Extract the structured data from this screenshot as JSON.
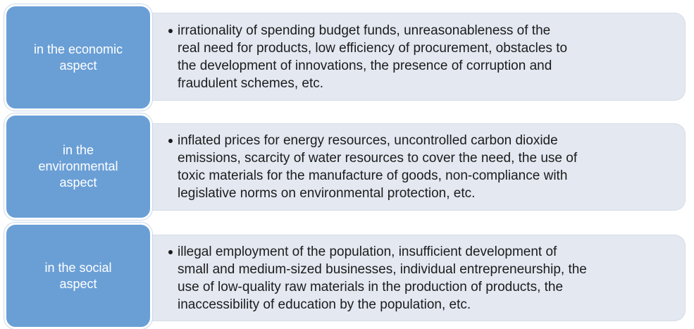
{
  "items": [
    {
      "label": [
        "in the economic",
        "aspect"
      ],
      "text": [
        "irrationality of spending budget funds, unreasonableness of the",
        "real need for products, low efficiency of procurement, obstacles to",
        "the development of innovations, the presence of corruption and",
        "fraudulent schemes, etc."
      ]
    },
    {
      "label": [
        "in the",
        "environmental",
        "aspect"
      ],
      "text": [
        "inflated prices for energy resources, uncontrolled carbon dioxide",
        "emissions, scarcity of water resources to cover the need, the use of",
        "toxic materials for the manufacture of goods, non-compliance with",
        "legislative norms on environmental protection, etc."
      ]
    },
    {
      "label": [
        "in the social",
        "aspect"
      ],
      "text": [
        "illegal employment of the population, insufficient development of",
        "small and medium-sized businesses, individual entrepreneurship, the",
        "use of low-quality raw materials in the production of products, the",
        "inaccessibility of education by the population, etc."
      ]
    }
  ]
}
